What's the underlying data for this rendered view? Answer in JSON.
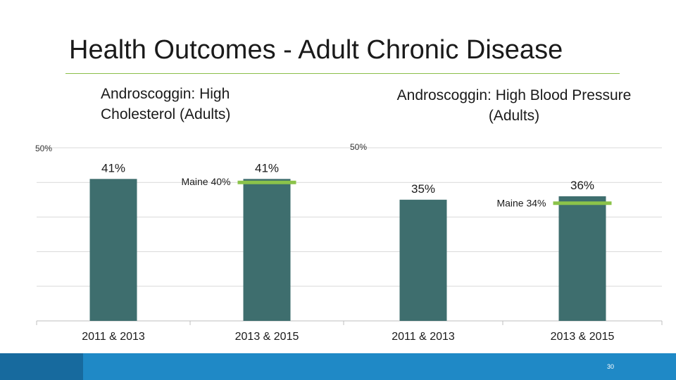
{
  "slide": {
    "title": "Health Outcomes - Adult Chronic Disease",
    "page_number": "30"
  },
  "colors": {
    "bar": "#3e6e6e",
    "state_marker": "#8bc34a",
    "grid": "#d9d9d9",
    "footer": "#1f89c6"
  },
  "chart_data": [
    {
      "type": "bar",
      "title": "Androscoggin: High Cholesterol (Adults)",
      "categories": [
        "2011 & 2013",
        "2013 & 2015"
      ],
      "values": [
        41,
        41
      ],
      "value_labels": [
        "41%",
        "41%"
      ],
      "ylim": [
        0,
        50
      ],
      "ytick_label": "50%",
      "grid": true,
      "reference": {
        "label": "Maine 40%",
        "value": 40,
        "category": "2013 & 2015"
      }
    },
    {
      "type": "bar",
      "title": "Androscoggin: High Blood Pressure (Adults)",
      "categories": [
        "2011 & 2013",
        "2013 & 2015"
      ],
      "values": [
        35,
        36
      ],
      "value_labels": [
        "35%",
        "36%"
      ],
      "ylim": [
        0,
        50
      ],
      "ytick_label": "50%",
      "grid": true,
      "reference": {
        "label": "Maine 34%",
        "value": 34,
        "category": "2013 & 2015"
      }
    }
  ]
}
